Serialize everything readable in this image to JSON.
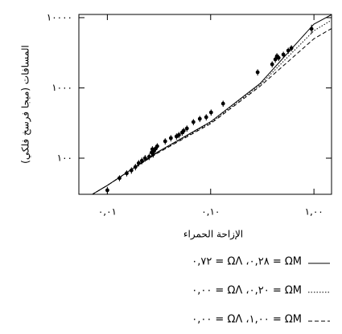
{
  "chart_data": {
    "type": "scatter",
    "xlabel": "الإزاحة الحمراء",
    "ylabel": "المسافات (ميجا فرسخ فلكي)",
    "xscale": "log",
    "yscale": "log",
    "xlim": [
      0.0053,
      1.48
    ],
    "ylim": [
      30.6,
      11100
    ],
    "xticks": [
      {
        "value": 0.01,
        "label": "٠,٠١"
      },
      {
        "value": 0.1,
        "label": "٠,١٠"
      },
      {
        "value": 1,
        "label": "١,٠٠"
      }
    ],
    "yticks": [
      {
        "value": 100,
        "label": "١٠٠"
      },
      {
        "value": 1000,
        "label": "١٠٠٠"
      },
      {
        "value": 10000,
        "label": "١٠٠٠٠"
      }
    ],
    "points": {
      "color": "#000000",
      "x": [
        0.01,
        0.0131,
        0.0154,
        0.0171,
        0.0187,
        0.0201,
        0.0216,
        0.0232,
        0.0254,
        0.0268,
        0.0273,
        0.0278,
        0.0283,
        0.0293,
        0.0304,
        0.0363,
        0.0412,
        0.0467,
        0.0493,
        0.053,
        0.0548,
        0.0589,
        0.0681,
        0.0785,
        0.0906,
        0.101,
        0.132,
        0.285,
        0.394,
        0.423,
        0.438,
        0.455,
        0.506,
        0.564,
        0.605,
        0.948
      ],
      "values": [
        35,
        52,
        61,
        67,
        75,
        85,
        92,
        100,
        105,
        120,
        134,
        114,
        127,
        137,
        148,
        174,
        193,
        204,
        214,
        232,
        245,
        265,
        327,
        363,
        383,
        448,
        598,
        1670,
        2170,
        2550,
        2830,
        2680,
        2980,
        3400,
        3680,
        6920
      ],
      "errors": [
        4,
        5,
        6,
        7,
        8,
        9,
        10,
        11,
        11,
        13,
        14,
        12,
        13,
        14,
        15,
        18,
        20,
        21,
        22,
        24,
        25,
        27,
        33,
        37,
        39,
        45,
        60,
        170,
        220,
        260,
        290,
        270,
        300,
        340,
        370,
        1000
      ]
    },
    "series": [
      {
        "name": "٠,٧٢ = ΩΛ ،٠,٢٨ = ΩM",
        "style": "solid",
        "color": "#000000",
        "x": [
          0.007,
          0.01,
          0.03,
          0.1,
          0.3,
          1,
          1.48
        ],
        "values": [
          30,
          41,
          120,
          330,
          1150,
          8100,
          11000
        ]
      },
      {
        "name": "٠,٠٠ = ΩΛ ،٠,٢٠ = ΩM",
        "style": "dotted",
        "color": "#000000",
        "x": [
          0.007,
          0.01,
          0.03,
          0.1,
          0.3,
          1,
          1.48
        ],
        "values": [
          30,
          41,
          118,
          320,
          1100,
          6500,
          9200
        ]
      },
      {
        "name": "٠,٠٠ = ΩΛ ،١,٠٠ = ΩM",
        "style": "dashed",
        "color": "#000000",
        "x": [
          0.007,
          0.01,
          0.03,
          0.1,
          0.3,
          1,
          1.48
        ],
        "values": [
          30,
          41,
          116,
          310,
          1050,
          5000,
          7000
        ]
      }
    ]
  }
}
